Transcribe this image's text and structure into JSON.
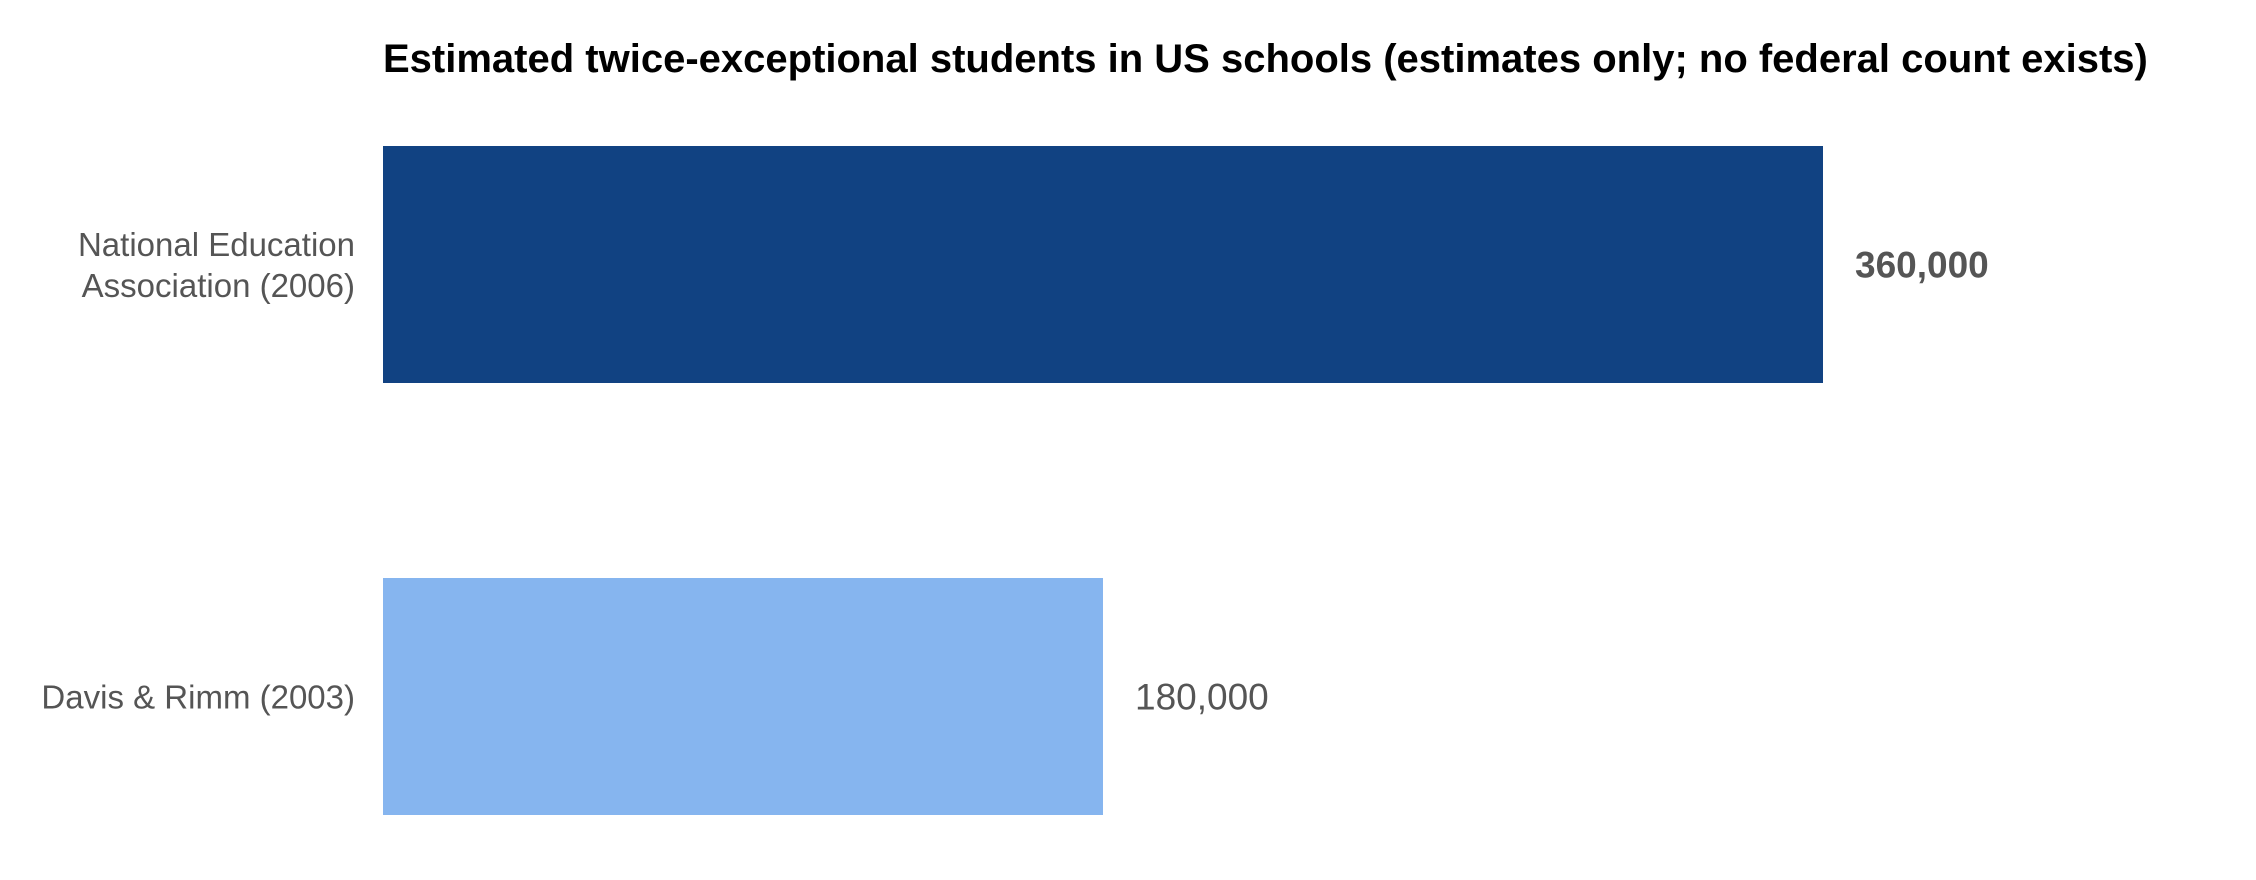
{
  "chart_data": {
    "type": "bar",
    "orientation": "horizontal",
    "title": "Estimated twice-exceptional students in US schools (estimates only; no federal count exists)",
    "categories": [
      "National Education Association (2006)",
      "Davis & Rimm (2003)"
    ],
    "category_lines": [
      [
        "National Education",
        "Association (2006)"
      ],
      [
        "Davis & Rimm (2003)"
      ]
    ],
    "values": [
      360000,
      180000
    ],
    "value_labels": [
      "360,000",
      "180,000"
    ],
    "bar_colors": [
      "#114282",
      "#86b5ef"
    ],
    "emphasized": [
      true,
      false
    ],
    "xlim": [
      0,
      360000
    ],
    "grid": false,
    "legend": "none"
  }
}
